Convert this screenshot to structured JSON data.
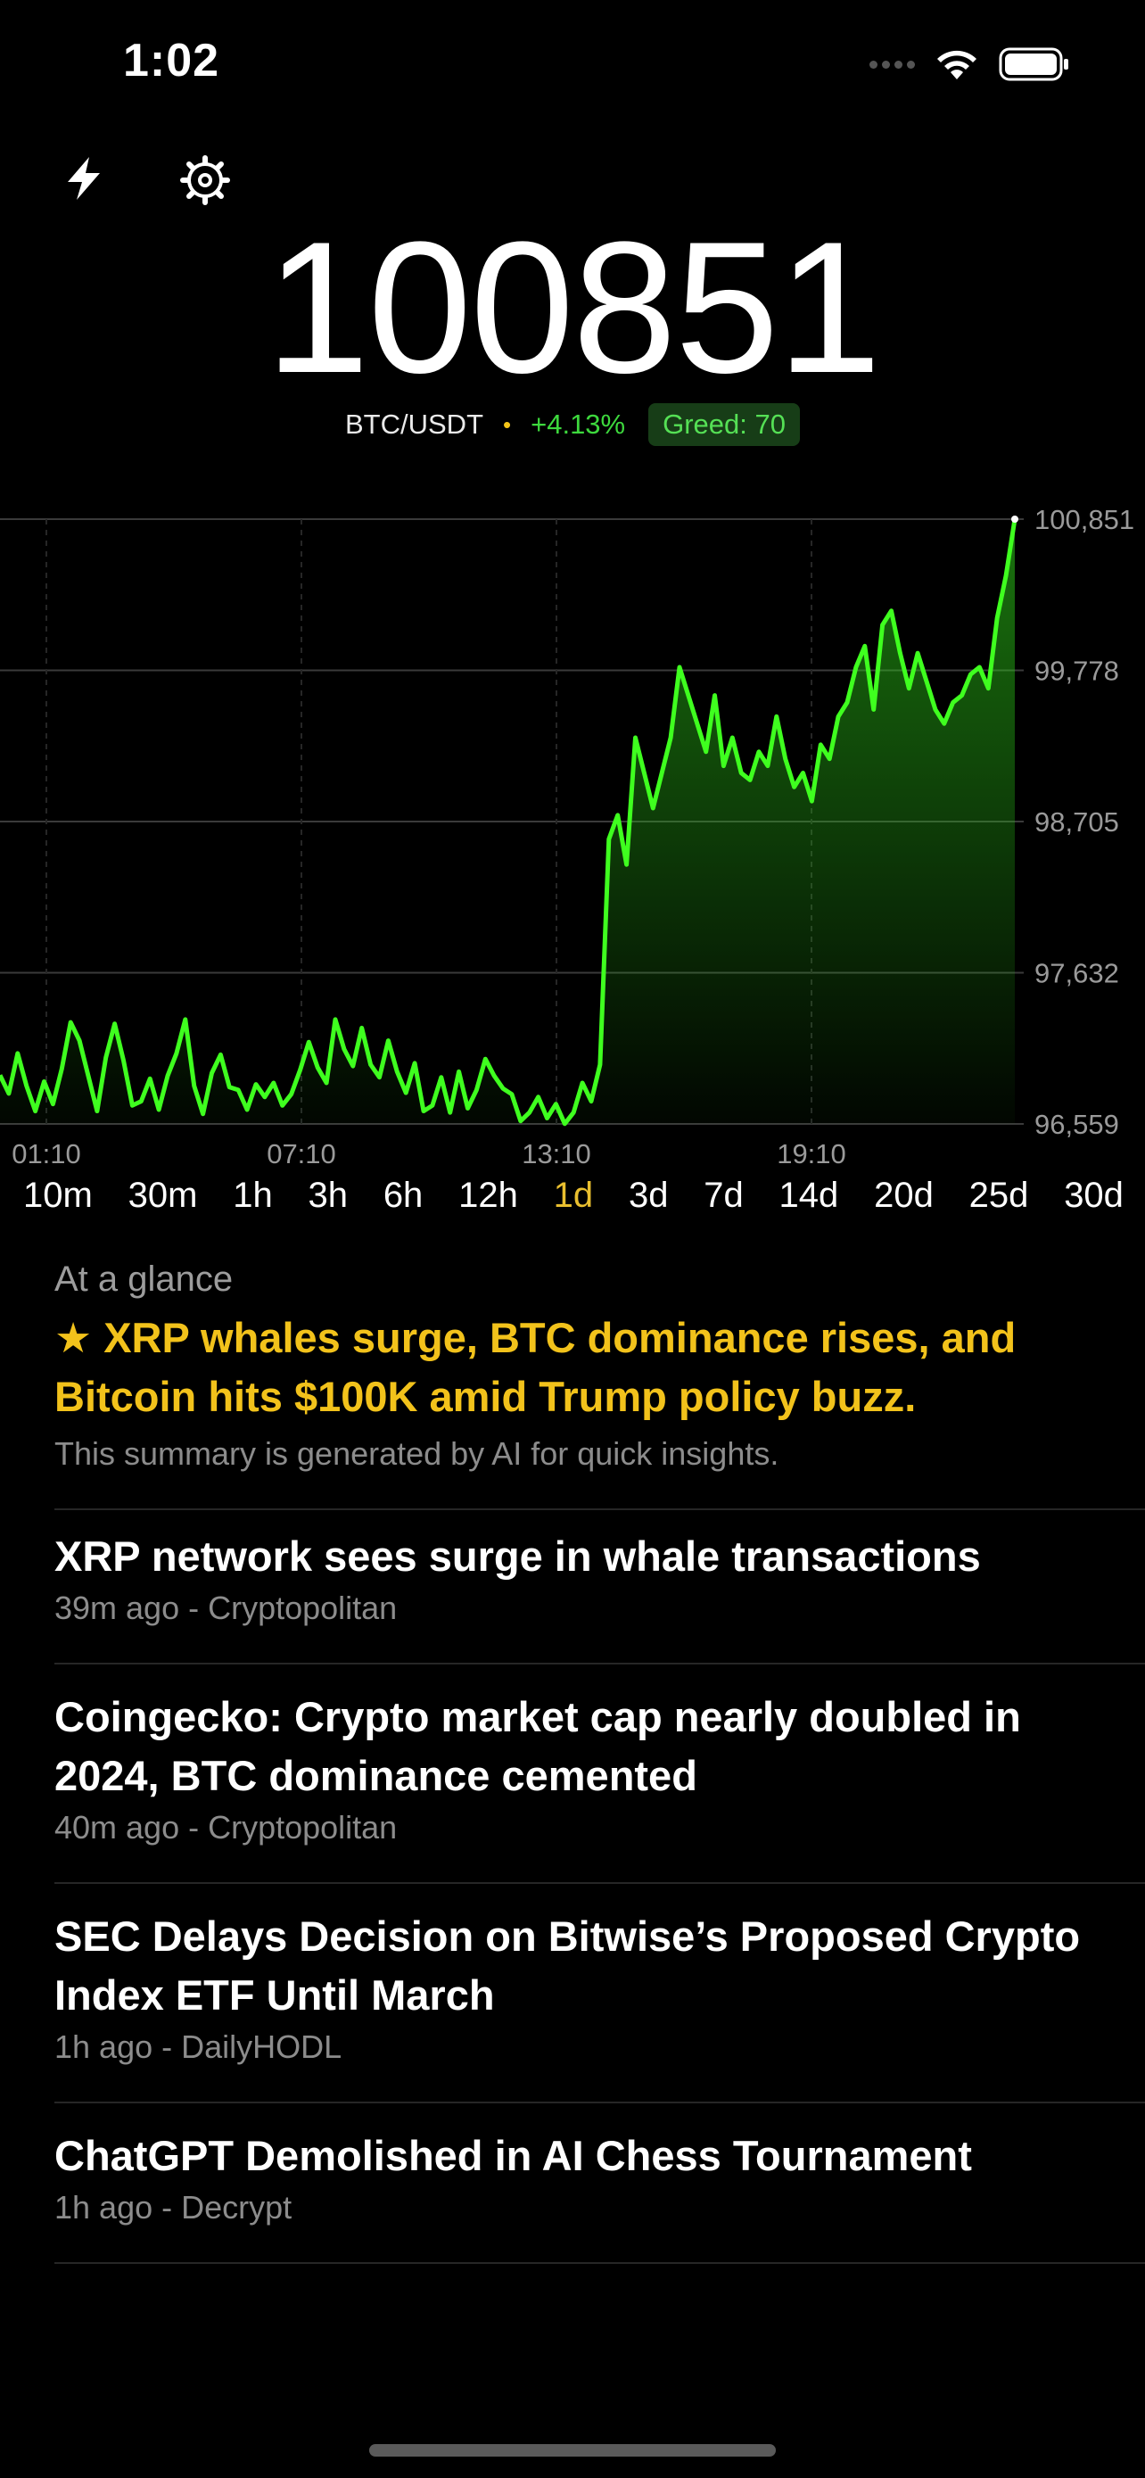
{
  "status_bar": {
    "time": "1:02"
  },
  "price": "100851",
  "pair": "BTC/USDT",
  "separator": "•",
  "change": "+4.13%",
  "greed": "Greed: 70",
  "colors": {
    "accent_green": "#3fff1f",
    "tab_active": "#e9bf2f",
    "glance_yellow": "#f2c21b"
  },
  "icons": [
    "bolt-icon",
    "gear-icon",
    "wifi-icon",
    "battery-icon"
  ],
  "chart_data": {
    "type": "area",
    "y_ticks": [
      "100,851",
      "99,778",
      "98,705",
      "97,632",
      "96,559"
    ],
    "x_ticks": [
      "01:10",
      "07:10",
      "13:10",
      "19:10"
    ],
    "ylim": [
      96559,
      100851
    ],
    "grid": true,
    "values": [
      96905,
      96775,
      97060,
      96830,
      96650,
      96860,
      96700,
      96950,
      97280,
      97150,
      96900,
      96650,
      97030,
      97270,
      97010,
      96690,
      96720,
      96880,
      96660,
      96900,
      97060,
      97300,
      96830,
      96630,
      96920,
      97050,
      96820,
      96800,
      96660,
      96840,
      96750,
      96850,
      96690,
      96770,
      96940,
      97140,
      96960,
      96850,
      97300,
      97090,
      96970,
      97240,
      96980,
      96890,
      97150,
      96930,
      96780,
      96990,
      96650,
      96690,
      96890,
      96640,
      96930,
      96670,
      96800,
      97020,
      96900,
      96810,
      96770,
      96580,
      96640,
      96750,
      96600,
      96700,
      96560,
      96640,
      96850,
      96720,
      96980,
      98580,
      98750,
      98400,
      99300,
      99050,
      98800,
      99050,
      99300,
      99800,
      99600,
      99400,
      99200,
      99600,
      99100,
      99300,
      99050,
      99000,
      99200,
      99100,
      99450,
      99150,
      98950,
      99050,
      98850,
      99250,
      99150,
      99450,
      99550,
      99800,
      99950,
      99500,
      100100,
      100200,
      99900,
      99650,
      99900,
      99700,
      99500,
      99400,
      99550,
      99600,
      99750,
      99800,
      99650,
      100150,
      100450,
      100851
    ]
  },
  "range_tabs": [
    "10m",
    "30m",
    "1h",
    "3h",
    "6h",
    "12h",
    "1d",
    "3d",
    "7d",
    "14d",
    "20d",
    "25d",
    "30d"
  ],
  "active_range": "1d",
  "glance": {
    "heading": "At a glance",
    "text": "★ XRP whales surge, BTC dominance rises, and Bitcoin hits $100K amid Trump policy buzz.",
    "note": "This summary is generated by AI for quick insights."
  },
  "news": [
    {
      "title": "XRP network sees surge in whale transactions",
      "meta": "39m ago - Cryptopolitan"
    },
    {
      "title": "Coingecko: Crypto market cap nearly doubled in 2024, BTC dominance cemented",
      "meta": "40m ago - Cryptopolitan"
    },
    {
      "title": "SEC Delays Decision on Bitwise’s Proposed Crypto Index ETF Until March",
      "meta": "1h ago - DailyHODL"
    },
    {
      "title": "ChatGPT Demolished in AI Chess Tournament",
      "meta": "1h ago - Decrypt"
    }
  ]
}
